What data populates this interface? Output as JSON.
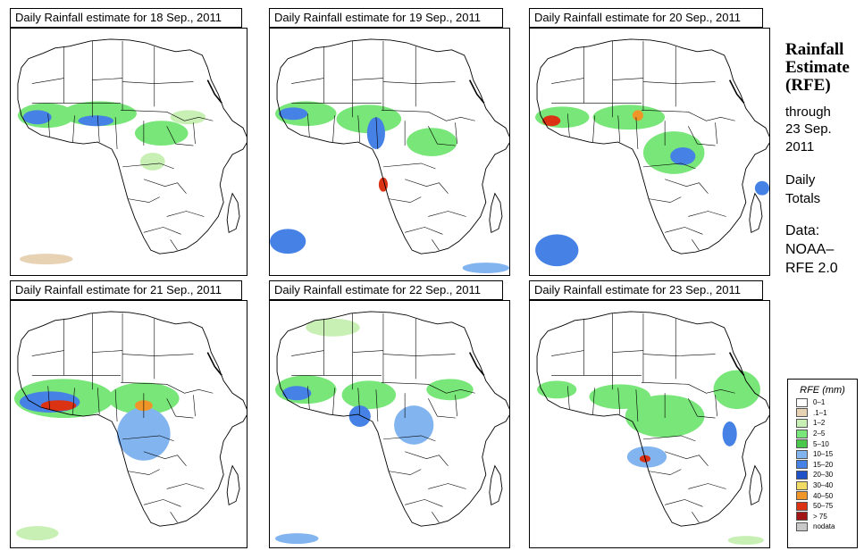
{
  "panels": [
    {
      "title": "Daily Rainfall estimate for  18 Sep., 2011"
    },
    {
      "title": "Daily Rainfall estimate for  19 Sep., 2011"
    },
    {
      "title": "Daily Rainfall estimate for  20 Sep., 2011"
    },
    {
      "title": "Daily Rainfall estimate for  21 Sep., 2011"
    },
    {
      "title": "Daily Rainfall estimate for  22 Sep., 2011"
    },
    {
      "title": "Daily Rainfall estimate for  23 Sep., 2011"
    }
  ],
  "sidebar": {
    "title_lines": [
      "Rainfall",
      "Estimate",
      "(RFE)"
    ],
    "through": "through",
    "date_lines": [
      "23 Sep.",
      "2011"
    ],
    "totals_lines": [
      "Daily",
      "Totals"
    ],
    "data_lines": [
      "Data:",
      "NOAA–",
      "RFE 2.0"
    ]
  },
  "legend": {
    "title": "RFE (mm)",
    "items": [
      {
        "label": "0–1",
        "color": "#ffffff"
      },
      {
        "label": ".1–1",
        "color": "#e8d2b4"
      },
      {
        "label": "1–2",
        "color": "#c8f0b4"
      },
      {
        "label": "2–5",
        "color": "#78e678"
      },
      {
        "label": "5–10",
        "color": "#4bc84b"
      },
      {
        "label": "10–15",
        "color": "#82b4f0"
      },
      {
        "label": "15–20",
        "color": "#4682e6"
      },
      {
        "label": "20–30",
        "color": "#1e50c8"
      },
      {
        "label": "30–40",
        "color": "#f0dc64"
      },
      {
        "label": "40–50",
        "color": "#f09628"
      },
      {
        "label": "50–75",
        "color": "#dc3214"
      },
      {
        "label": "> 75",
        "color": "#a01414"
      },
      {
        "label": "nodata",
        "color": "#c8c8c8"
      }
    ]
  }
}
